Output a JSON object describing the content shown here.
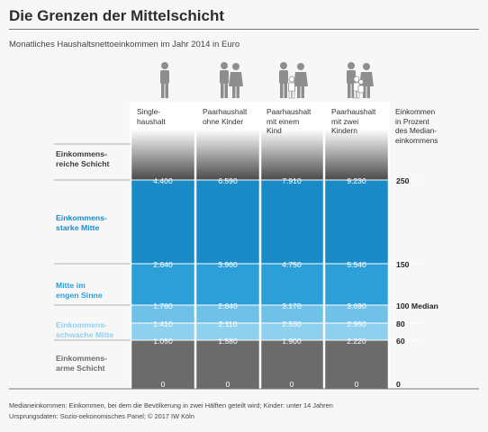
{
  "title": "Die Grenzen der Mittelschicht",
  "subtitle": "Monatliches Haushaltsnettoeinkommen im Jahr 2014 in Euro",
  "columns": [
    {
      "line1": "Single-",
      "line2": "haushalt",
      "line3": "",
      "line4": ""
    },
    {
      "line1": "Paarhaushalt",
      "line2": "ohne Kinder",
      "line3": "",
      "line4": ""
    },
    {
      "line1": "Paarhaushalt",
      "line2": "mit einem",
      "line3": "Kind",
      "line4": ""
    },
    {
      "line1": "Paarhaushalt",
      "line2": "mit zwei",
      "line3": "Kindern",
      "line4": ""
    },
    {
      "line1": "Einkommen",
      "line2": "in Prozent",
      "line3": "des Median-",
      "line4": "einkommens"
    }
  ],
  "layers": [
    {
      "line1": "Einkommens-",
      "line2": "reiche Schicht",
      "color": "#4a4a4a"
    },
    {
      "line1": "Einkommens-",
      "line2": "starke Mitte",
      "color": "#1a8bc7"
    },
    {
      "line1": "Mitte im",
      "line2": "engen Sinne",
      "color": "#2c9fd8"
    },
    {
      "line1": "Einkommens-",
      "line2": "schwache Mitte",
      "color": "#8fd0ee"
    },
    {
      "line1": "Einkommens-",
      "line2": "arme Schicht",
      "color": "#6b6b6b"
    }
  ],
  "chart_data": {
    "type": "table",
    "categories": [
      "Single-haushalt",
      "Paarhaushalt ohne Kinder",
      "Paarhaushalt mit einem Kind",
      "Paarhaushalt mit zwei Kindern"
    ],
    "percent_of_median": [
      "250",
      "150",
      "100 Median",
      "80",
      "60",
      "0"
    ],
    "series": [
      {
        "values": [
          "4.400",
          "6.590",
          "7.910",
          "9.230"
        ]
      },
      {
        "values": [
          "2.640",
          "3.960",
          "4.750",
          "5.540"
        ]
      },
      {
        "values": [
          "1.760",
          "2.640",
          "3.170",
          "3.690"
        ]
      },
      {
        "values": [
          "1.410",
          "2.110",
          "2.530",
          "2.950"
        ]
      },
      {
        "values": [
          "1.050",
          "1.580",
          "1.900",
          "2.220"
        ]
      },
      {
        "values": [
          "0",
          "0",
          "0",
          "0"
        ]
      }
    ]
  },
  "footer": {
    "line1": "Medianeinkommen: Einkommen, bei dem die Bevölkerung in zwei Hälften geteilt wird; Kinder: unter 14 Jahren",
    "line2": "Ursprungsdaten: Sozio-oekonomisches Panel; © 2017 IW Köln"
  },
  "colors": {
    "dark_gray": "#4a4a4a",
    "upper_middle_blue": "#1a8bc7",
    "core_middle_blue": "#2c9fd8",
    "lower_middle_blue": "#8fd0ee",
    "poor_gray": "#6b6b6b",
    "rich_gradient_top": "#ffffff"
  }
}
